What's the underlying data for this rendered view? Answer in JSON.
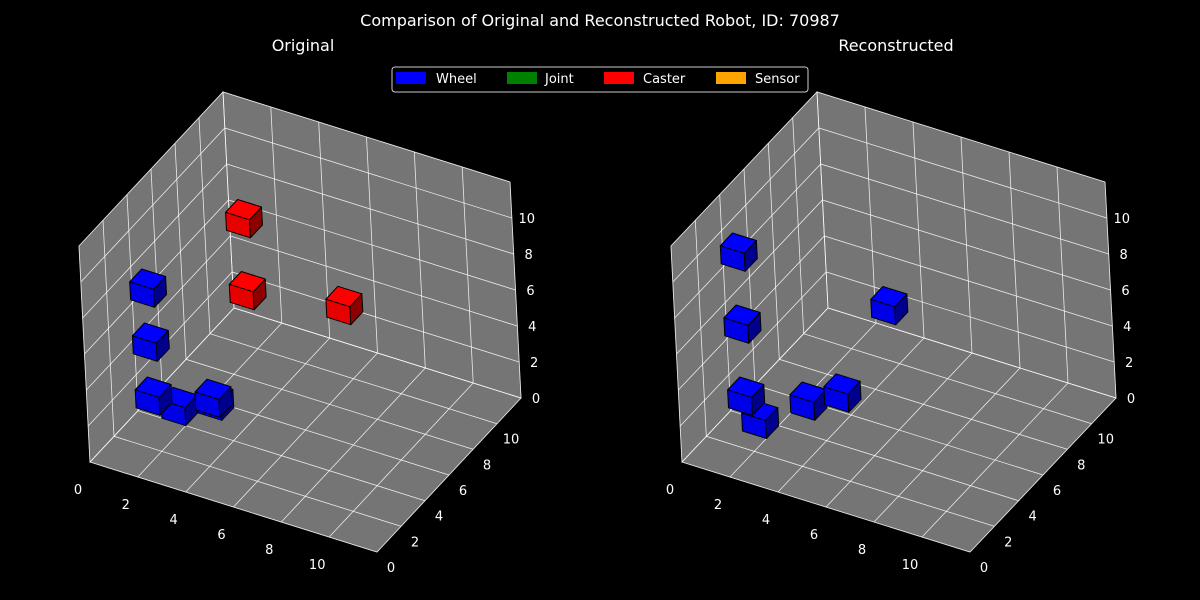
{
  "figure": {
    "title": "Comparison of Original and Reconstructed Robot, ID: 70987",
    "background": "#000000",
    "pane_color": "#757575"
  },
  "legend": {
    "placement": "top-center",
    "items": [
      {
        "label": "Wheel",
        "color": "#0000ff"
      },
      {
        "label": "Joint",
        "color": "#008000"
      },
      {
        "label": "Caster",
        "color": "#ff0000"
      },
      {
        "label": "Sensor",
        "color": "#ffa500"
      }
    ]
  },
  "chart_data": [
    {
      "type": "scatter",
      "title": "Original",
      "projection": "3d",
      "xlim": [
        0,
        12
      ],
      "ylim": [
        0,
        12
      ],
      "zlim": [
        0,
        12
      ],
      "xticks": [
        "0",
        "2",
        "4",
        "6",
        "8",
        "10"
      ],
      "yticks": [
        "0",
        "2",
        "4",
        "6",
        "8",
        "10"
      ],
      "zticks": [
        "0",
        "2",
        "4",
        "6",
        "8",
        "10"
      ],
      "grid": true,
      "series": [
        {
          "name": "Wheel",
          "points": [
            [
              1,
              2,
              8
            ],
            [
              1,
              2,
              5
            ],
            [
              1,
              2,
              2
            ],
            [
              2,
              5,
              0
            ],
            [
              3,
              3,
              2
            ],
            [
              1,
              4,
              0
            ]
          ]
        },
        {
          "name": "Caster",
          "points": [
            [
              2,
              8,
              8
            ],
            [
              2,
              8,
              4
            ],
            [
              5,
              10,
              3
            ]
          ]
        }
      ]
    },
    {
      "type": "scatter",
      "title": "Reconstructed",
      "projection": "3d",
      "xlim": [
        0,
        12
      ],
      "ylim": [
        0,
        12
      ],
      "zlim": [
        0,
        12
      ],
      "xticks": [
        "0",
        "2",
        "4",
        "6",
        "8",
        "10"
      ],
      "yticks": [
        "0",
        "2",
        "4",
        "6",
        "8",
        "10"
      ],
      "zticks": [
        "0",
        "2",
        "4",
        "6",
        "8",
        "10"
      ],
      "grid": true,
      "series": [
        {
          "name": "Wheel",
          "points": [
            [
              1,
              2,
              10
            ],
            [
              1,
              2,
              6
            ],
            [
              1,
              2,
              2
            ],
            [
              1,
              3,
              0
            ],
            [
              2,
              5,
              0
            ],
            [
              4,
              4,
              2
            ],
            [
              4,
              8,
              4
            ]
          ]
        }
      ]
    }
  ]
}
